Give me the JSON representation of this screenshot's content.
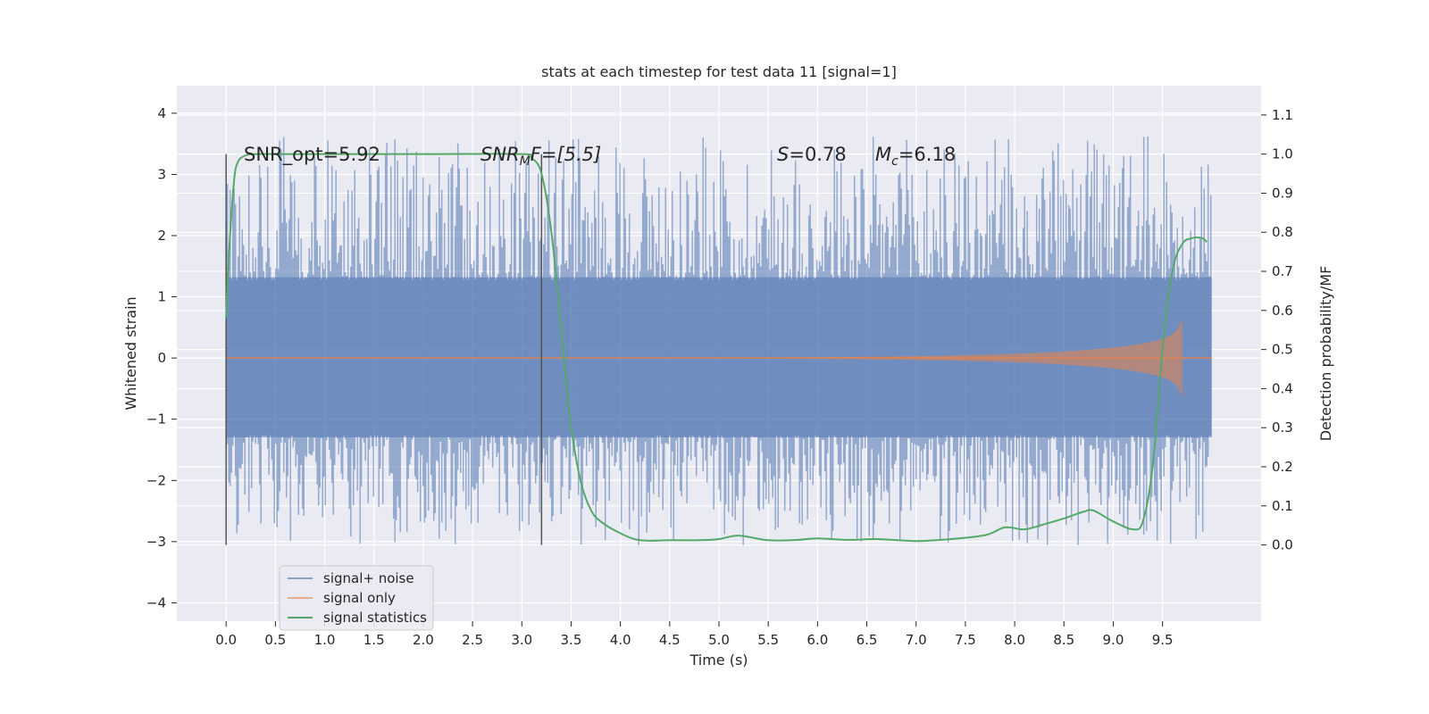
{
  "chart_data": {
    "type": "line",
    "title": "stats at each timestep for test data 11 [signal=1]",
    "xlabel": "Time (s)",
    "ylabel_left": "Whitened strain",
    "ylabel_right": "Detection probability/MF",
    "xlim": [
      -0.5,
      10.5
    ],
    "ylim_left": [
      -4.3,
      4.45
    ],
    "ylim_right": [
      -0.195,
      1.175
    ],
    "x_ticks": [
      "0.0",
      "0.5",
      "1.0",
      "1.5",
      "2.0",
      "2.5",
      "3.0",
      "3.5",
      "4.0",
      "4.5",
      "5.0",
      "5.5",
      "6.0",
      "6.5",
      "7.0",
      "7.5",
      "8.0",
      "8.5",
      "9.0",
      "9.5"
    ],
    "y_ticks_left": [
      "4",
      "3",
      "2",
      "1",
      "0",
      "−1",
      "−2",
      "−3",
      "−4"
    ],
    "y_ticks_right": [
      "1.1",
      "1.0",
      "0.9",
      "0.8",
      "0.7",
      "0.6",
      "0.5",
      "0.4",
      "0.3",
      "0.2",
      "0.1",
      "0.0"
    ],
    "grid": true,
    "legend_position": "lower-left",
    "annotations": {
      "snr_opt": "SNR_opt=5.92",
      "snr_mf_base": "SNR",
      "snr_mf_sub": "M",
      "snr_mf_rest": "F=[5.5]",
      "s_label": "S",
      "s_value": "=0.78",
      "mc_label": "M",
      "mc_sub": "c",
      "mc_value": "=6.18"
    },
    "vertical_markers": [
      0.0,
      3.2
    ],
    "series": [
      {
        "name": "signal+ noise",
        "color": "#4c72b0",
        "axis": "left",
        "x_range": [
          0.0,
          10.0
        ],
        "band_typical": [
          -1.8,
          1.5
        ],
        "band_extreme": [
          -3.7,
          4.05
        ]
      },
      {
        "name": "signal only",
        "color": "#dd8452",
        "axis": "left",
        "x_range": [
          0.0,
          9.7
        ],
        "amplitude_at_end": 0.65
      },
      {
        "name": "signal statistics",
        "color": "#55a868",
        "axis": "right",
        "x": [
          0.0,
          0.03,
          0.08,
          0.12,
          0.2,
          0.3,
          0.5,
          1.0,
          2.0,
          3.0,
          3.1,
          3.2,
          3.3,
          3.4,
          3.45,
          3.5,
          3.6,
          3.7,
          3.8,
          4.0,
          4.2,
          4.5,
          4.8,
          5.0,
          5.2,
          5.5,
          5.8,
          6.0,
          6.3,
          6.6,
          7.0,
          7.3,
          7.7,
          7.9,
          8.1,
          8.3,
          8.5,
          8.7,
          8.8,
          9.0,
          9.2,
          9.3,
          9.4,
          9.5,
          9.6,
          9.7,
          9.8,
          9.9,
          9.95
        ],
        "y": [
          0.58,
          0.75,
          0.93,
          0.98,
          0.997,
          1.0,
          1.0,
          1.0,
          1.0,
          1.0,
          0.99,
          0.95,
          0.8,
          0.55,
          0.42,
          0.3,
          0.16,
          0.09,
          0.06,
          0.03,
          0.012,
          0.012,
          0.012,
          0.015,
          0.024,
          0.012,
          0.013,
          0.017,
          0.013,
          0.015,
          0.01,
          0.014,
          0.025,
          0.045,
          0.04,
          0.053,
          0.068,
          0.085,
          0.088,
          0.06,
          0.04,
          0.06,
          0.2,
          0.5,
          0.7,
          0.77,
          0.785,
          0.785,
          0.775
        ]
      }
    ]
  }
}
